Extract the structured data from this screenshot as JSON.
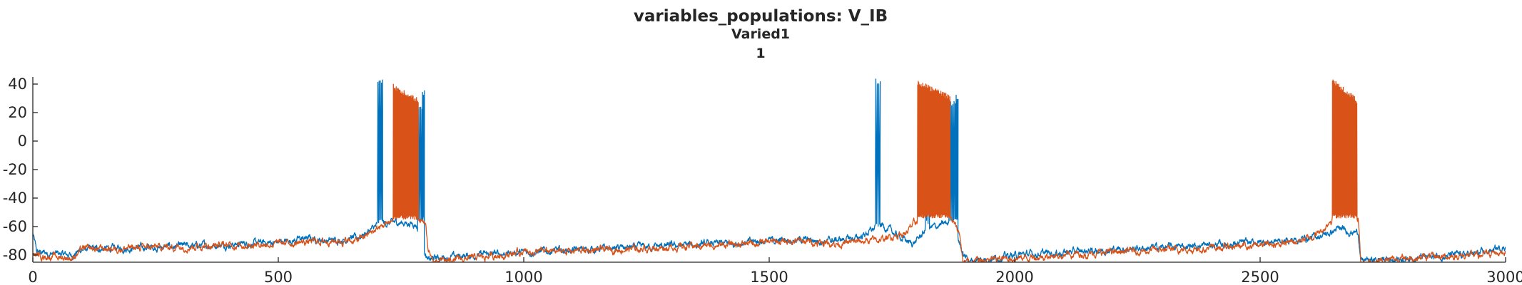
{
  "title": "variables_populations: V_IB",
  "subtitle": "Varied1",
  "subtitle2": "1",
  "chart_data": {
    "type": "line",
    "title": "variables_populations: V_IB",
    "subtitle": "Varied1",
    "subtitle2": "1",
    "xlabel": "",
    "ylabel": "",
    "xlim": [
      0,
      3000
    ],
    "ylim": [
      -85,
      45
    ],
    "xticks": [
      0,
      500,
      1000,
      1500,
      2000,
      2500,
      3000
    ],
    "yticks": [
      -80,
      -60,
      -40,
      -20,
      0,
      20,
      40
    ],
    "grid": false,
    "legend": "none",
    "series": [
      {
        "color": "#0072BD",
        "baseline": [
          [
            0,
            -65
          ],
          [
            8,
            -78
          ],
          [
            80,
            -80
          ],
          [
            100,
            -76
          ],
          [
            300,
            -74
          ],
          [
            500,
            -71
          ],
          [
            560,
            -68
          ],
          [
            600,
            -70
          ],
          [
            660,
            -68
          ],
          [
            690,
            -62
          ],
          [
            704,
            -59
          ],
          [
            740,
            -57
          ],
          [
            780,
            -58
          ],
          [
            795,
            -72
          ],
          [
            805,
            -84
          ],
          [
            820,
            -82
          ],
          [
            900,
            -80
          ],
          [
            1000,
            -78
          ],
          [
            1200,
            -75
          ],
          [
            1400,
            -72
          ],
          [
            1550,
            -69
          ],
          [
            1620,
            -70
          ],
          [
            1680,
            -68
          ],
          [
            1712,
            -62
          ],
          [
            1730,
            -59
          ],
          [
            1760,
            -66
          ],
          [
            1790,
            -72
          ],
          [
            1800,
            -70
          ],
          [
            1820,
            -62
          ],
          [
            1860,
            -58
          ],
          [
            1880,
            -57
          ],
          [
            1885,
            -68
          ],
          [
            1895,
            -80
          ],
          [
            1910,
            -84
          ],
          [
            2000,
            -80
          ],
          [
            2200,
            -76
          ],
          [
            2400,
            -73
          ],
          [
            2550,
            -70
          ],
          [
            2600,
            -68
          ],
          [
            2640,
            -65
          ],
          [
            2655,
            -62
          ],
          [
            2700,
            -64
          ],
          [
            2705,
            -84
          ],
          [
            2800,
            -82
          ],
          [
            2950,
            -79
          ],
          [
            3000,
            -74
          ]
        ],
        "spikes": [
          {
            "t0": 702,
            "t1": 712,
            "isi": 2.4,
            "peak": 43,
            "trough": -58
          },
          {
            "t0": 784,
            "t1": 796,
            "isi": 2.6,
            "peak": 26,
            "trough": -56
          },
          {
            "t0": 793,
            "t1": 797,
            "isi": 2.0,
            "peak": 36,
            "trough": -56
          },
          {
            "t0": 1716,
            "t1": 1725,
            "isi": 3.0,
            "peak": 44,
            "trough": -60
          },
          {
            "t0": 1818,
            "t1": 1826,
            "isi": 2.8,
            "peak": 38,
            "trough": -58
          },
          {
            "t0": 1866,
            "t1": 1882,
            "isi": 2.4,
            "peak": 28,
            "trough": -56
          },
          {
            "t0": 1880,
            "t1": 1884,
            "isi": 2.0,
            "peak": 33,
            "trough": -56
          }
        ]
      },
      {
        "color": "#D95319",
        "baseline": [
          [
            0,
            -80
          ],
          [
            80,
            -82
          ],
          [
            100,
            -76
          ],
          [
            300,
            -74
          ],
          [
            500,
            -72
          ],
          [
            600,
            -70
          ],
          [
            660,
            -70
          ],
          [
            690,
            -64
          ],
          [
            720,
            -58
          ],
          [
            728,
            -56
          ],
          [
            760,
            -55
          ],
          [
            800,
            -57
          ],
          [
            805,
            -75
          ],
          [
            815,
            -85
          ],
          [
            900,
            -82
          ],
          [
            1000,
            -78
          ],
          [
            1200,
            -76
          ],
          [
            1400,
            -73
          ],
          [
            1550,
            -70
          ],
          [
            1650,
            -72
          ],
          [
            1700,
            -70
          ],
          [
            1730,
            -69
          ],
          [
            1780,
            -64
          ],
          [
            1795,
            -58
          ],
          [
            1810,
            -56
          ],
          [
            1870,
            -55
          ],
          [
            1888,
            -65
          ],
          [
            1895,
            -85
          ],
          [
            2000,
            -82
          ],
          [
            2200,
            -78
          ],
          [
            2400,
            -75
          ],
          [
            2550,
            -72
          ],
          [
            2600,
            -68
          ],
          [
            2630,
            -62
          ],
          [
            2642,
            -55
          ],
          [
            2700,
            -55
          ],
          [
            2705,
            -85
          ],
          [
            2800,
            -82
          ],
          [
            2950,
            -80
          ],
          [
            3000,
            -77
          ]
        ],
        "spikes": [
          {
            "t0": 734,
            "t1": 785,
            "isi": 1.15,
            "peak": 40,
            "trough": -55,
            "peak_end": 30
          },
          {
            "t0": 1802,
            "t1": 1868,
            "isi": 1.15,
            "peak": 43,
            "trough": -54,
            "peak_end": 32
          },
          {
            "t0": 2647,
            "t1": 2697,
            "isi": 1.15,
            "peak": 44,
            "trough": -54,
            "peak_end": 30
          }
        ]
      }
    ]
  }
}
